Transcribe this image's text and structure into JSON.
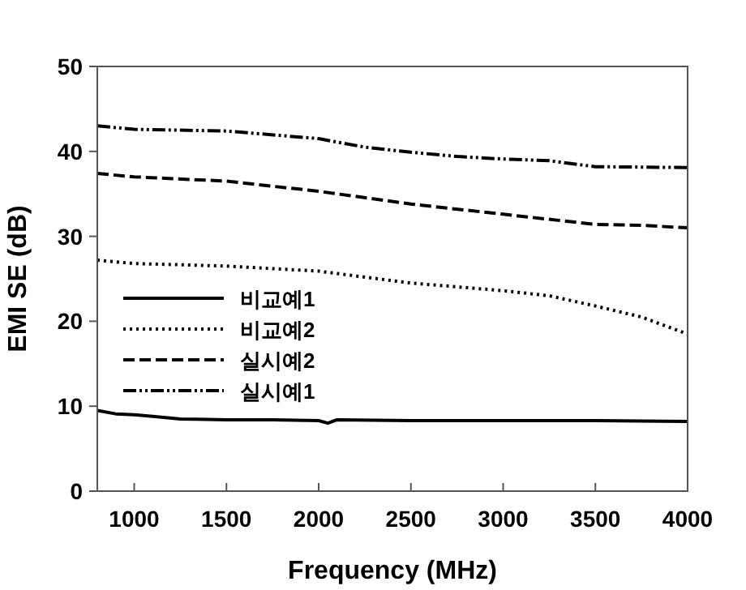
{
  "chart_data": {
    "type": "line",
    "xlabel": "Frequency (MHz)",
    "ylabel": "EMI SE (dB)",
    "xlim": [
      800,
      4000
    ],
    "xticks": [
      1000,
      1500,
      2000,
      2500,
      3000,
      3500,
      4000
    ],
    "ylim": [
      0,
      50
    ],
    "yticks": [
      0,
      10,
      20,
      30,
      40,
      50
    ],
    "grid": false,
    "legend": "left",
    "marker": "none",
    "series": [
      {
        "name": "비교예1",
        "color": "#000000",
        "line_style": "solid",
        "x": [
          800,
          900,
          1000,
          1100,
          1250,
          1500,
          1750,
          2000,
          2050,
          2100,
          2500,
          3000,
          3500,
          4000
        ],
        "values": [
          9.5,
          9.1,
          9.0,
          8.8,
          8.5,
          8.4,
          8.4,
          8.3,
          8.0,
          8.4,
          8.3,
          8.3,
          8.3,
          8.2
        ]
      },
      {
        "name": "비교예2",
        "color": "#000000",
        "line_style": "dotted",
        "x": [
          800,
          1000,
          1500,
          2000,
          2500,
          3000,
          3250,
          3500,
          3750,
          4000
        ],
        "values": [
          27.2,
          26.8,
          26.5,
          25.9,
          24.5,
          23.6,
          23.0,
          21.8,
          20.5,
          18.5
        ]
      },
      {
        "name": "실시예2",
        "color": "#000000",
        "line_style": "dashed",
        "x": [
          800,
          1000,
          1500,
          2000,
          2500,
          3000,
          3500,
          3750,
          4000
        ],
        "values": [
          37.4,
          37.0,
          36.5,
          35.3,
          33.8,
          32.6,
          31.4,
          31.3,
          31.0
        ]
      },
      {
        "name": "실시예1",
        "color": "#000000",
        "line_style": "dashdotdot",
        "x": [
          800,
          1000,
          1500,
          2000,
          2250,
          2500,
          2750,
          3000,
          3250,
          3500,
          4000
        ],
        "values": [
          43.0,
          42.6,
          42.4,
          41.5,
          40.5,
          39.9,
          39.4,
          39.1,
          38.9,
          38.2,
          38.1
        ]
      }
    ]
  }
}
